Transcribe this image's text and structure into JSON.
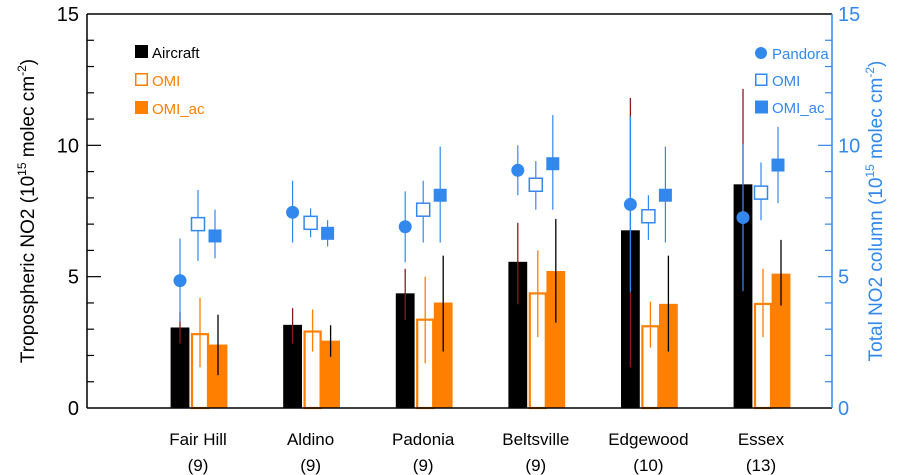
{
  "chart_data": {
    "type": "bar",
    "categories": [
      "Fair Hill",
      "Aldino",
      "Padonia",
      "Beltsville",
      "Edgewood",
      "Essex"
    ],
    "category_counts": [
      "(9)",
      "(9)",
      "(9)",
      "(9)",
      "(10)",
      "(13)"
    ],
    "ylabel_left": {
      "pre": "Tropospheric NO2 (10",
      "sup1": "15",
      "mid": " molec cm",
      "sup2": "-2",
      "post": ")"
    },
    "ylabel_right": {
      "pre": "Total NO2 column (10",
      "sup1": "15",
      "mid": " molec cm",
      "sup2": "-2",
      "post": ")"
    },
    "ylim_left": [
      0,
      15
    ],
    "ylim_right": [
      0,
      15
    ],
    "yticks_left": [
      "0",
      "5",
      "10",
      "15"
    ],
    "yticks_right": [
      "0",
      "5",
      "10",
      "15"
    ],
    "colors": {
      "aircraft": "#000000",
      "omi": "#ff7f00",
      "pandora": "#3388ee",
      "errbar_dark": "#8b1a1a"
    },
    "legend_left": [
      "Aircraft",
      "OMI",
      "OMI_ac"
    ],
    "legend_right": [
      "Pandora",
      "OMI",
      "OMI_ac"
    ],
    "legend_placement": {
      "left": "top-left",
      "right": "top-right"
    },
    "series": [
      {
        "name": "Aircraft",
        "axis": "left",
        "style": "filled-bar",
        "values": [
          3.05,
          3.15,
          4.35,
          5.55,
          6.75,
          8.5
        ],
        "err_low": [
          2.45,
          2.45,
          3.35,
          3.95,
          1.55,
          4.9
        ],
        "err_high": [
          3.65,
          3.8,
          5.3,
          7.05,
          11.8,
          12.15
        ]
      },
      {
        "name": "OMI",
        "axis": "left",
        "style": "open-bar",
        "values": [
          2.85,
          2.95,
          3.4,
          4.4,
          3.15,
          4.0
        ],
        "err_low": [
          1.55,
          2.15,
          1.7,
          2.7,
          2.3,
          2.7
        ],
        "err_high": [
          4.2,
          3.75,
          5.0,
          6.0,
          4.05,
          5.3
        ]
      },
      {
        "name": "OMI_ac",
        "axis": "left",
        "style": "filled-bar",
        "values": [
          2.4,
          2.55,
          4.0,
          5.2,
          3.95,
          5.1
        ],
        "err_low": [
          1.25,
          1.95,
          2.15,
          3.25,
          2.15,
          3.9
        ],
        "err_high": [
          3.55,
          3.15,
          5.8,
          7.2,
          5.8,
          6.4
        ]
      },
      {
        "name": "Pandora",
        "axis": "right",
        "style": "circle",
        "values": [
          4.85,
          7.45,
          6.9,
          9.05,
          7.75,
          7.25
        ],
        "err_low": [
          3.3,
          6.3,
          5.55,
          8.1,
          4.4,
          4.45
        ],
        "err_high": [
          6.45,
          8.65,
          8.25,
          10.0,
          11.1,
          10.05
        ]
      },
      {
        "name": "OMI",
        "axis": "right",
        "style": "open-square",
        "values": [
          7.0,
          7.05,
          7.55,
          8.5,
          7.3,
          8.2
        ],
        "err_low": [
          5.6,
          6.5,
          6.3,
          7.55,
          6.4,
          7.15
        ],
        "err_high": [
          8.3,
          7.6,
          8.65,
          9.4,
          8.1,
          9.35
        ]
      },
      {
        "name": "OMI_ac",
        "axis": "right",
        "style": "filled-square",
        "values": [
          6.55,
          6.65,
          8.1,
          9.3,
          8.1,
          9.25
        ],
        "err_low": [
          5.7,
          6.15,
          6.3,
          7.55,
          6.3,
          7.8
        ],
        "err_high": [
          7.55,
          7.15,
          9.95,
          11.15,
          9.95,
          10.7
        ]
      }
    ]
  }
}
